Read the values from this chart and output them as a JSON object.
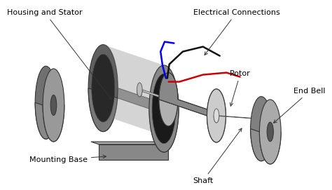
{
  "background_color": "#ffffff",
  "labels": {
    "housing_stator": "Housing and Stator",
    "electrical_connections": "Electrical Connections",
    "rotor": "Rotor",
    "end_bell": "End Bell",
    "mounting_base": "Mounting Base",
    "shaft": "Shaft"
  },
  "stator_body_color": "#888888",
  "stator_face_color": "#999999",
  "stator_hole_color": "#222222",
  "rotor_body_color": "#aaaaaa",
  "rotor_face_color": "#cccccc",
  "shaft_color": "#bbbbbb",
  "disk_color": "#888888",
  "disk_face_color": "#aaaaaa",
  "base_color": "#888888",
  "wire_colors": [
    "#0000ee",
    "#111111",
    "#cc0000"
  ],
  "label_fontsize": 8.0
}
